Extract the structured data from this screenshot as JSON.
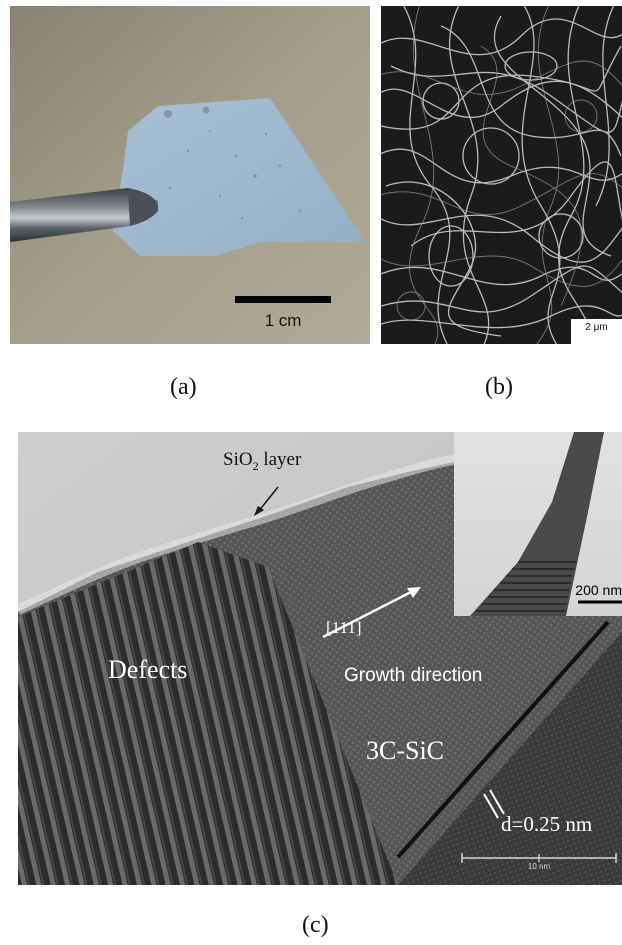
{
  "panels": {
    "a": {
      "caption": "(a)",
      "scale_label": "1 cm"
    },
    "b": {
      "caption": "(b)",
      "scale_label": "2 μm"
    },
    "c": {
      "caption": "(c)",
      "oxide_label_prefix": "SiO",
      "oxide_label_sub": "2",
      "oxide_label_suffix": " layer",
      "defects_label": "Defects",
      "direction_index": "[111]",
      "direction_label": "Growth direction",
      "phase_label": "3C-SiC",
      "spacing_label": "d=0.25 nm",
      "main_scale_label": "10 nm",
      "inset_scale_label": "200 nm"
    }
  }
}
